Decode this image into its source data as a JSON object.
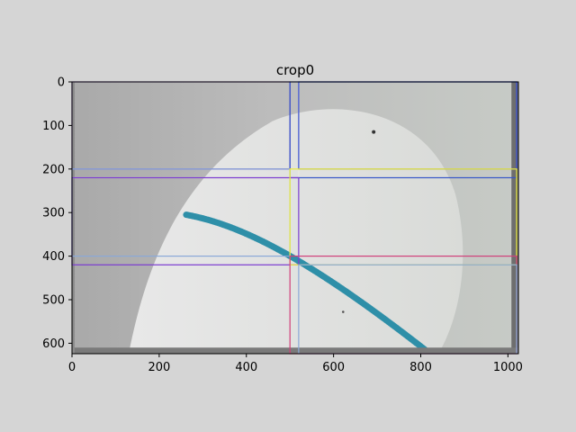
{
  "chart_data": {
    "type": "image",
    "title": "crop0",
    "xlabel": "",
    "ylabel": "",
    "xlim": [
      0,
      1024
    ],
    "ylim": [
      624,
      0
    ],
    "xticks": [
      0,
      200,
      400,
      600,
      800,
      1000
    ],
    "yticks": [
      0,
      100,
      200,
      300,
      400,
      500,
      600
    ],
    "grid": false,
    "image_description": "grayscale photo of white knit fabric with a blue marker stroke",
    "rectangles": [
      {
        "x0": 0,
        "y0": 0,
        "x1": 500,
        "y1": 200,
        "color": "#6c35c8"
      },
      {
        "x0": 0,
        "y0": 0,
        "x1": 520,
        "y1": 220,
        "color": "#e8e8e0"
      },
      {
        "x0": 500,
        "y0": 0,
        "x1": 1020,
        "y1": 220,
        "color": "#3656c8"
      },
      {
        "x0": 520,
        "y0": 0,
        "x1": 1020,
        "y1": 200,
        "color": "#3a4fd0"
      },
      {
        "x0": 0,
        "y0": 200,
        "x1": 500,
        "y1": 400,
        "color": "#8aa8d8"
      },
      {
        "x0": 0,
        "y0": 220,
        "x1": 520,
        "y1": 420,
        "color": "#7a3ad0"
      },
      {
        "x0": 500,
        "y0": 200,
        "x1": 1020,
        "y1": 420,
        "color": "#ecec3a"
      },
      {
        "x0": 500,
        "y0": 400,
        "x1": 1020,
        "y1": 624,
        "color": "#d0407a"
      },
      {
        "x0": 520,
        "y0": 420,
        "x1": 1020,
        "y1": 624,
        "color": "#8aa8d8"
      }
    ]
  }
}
